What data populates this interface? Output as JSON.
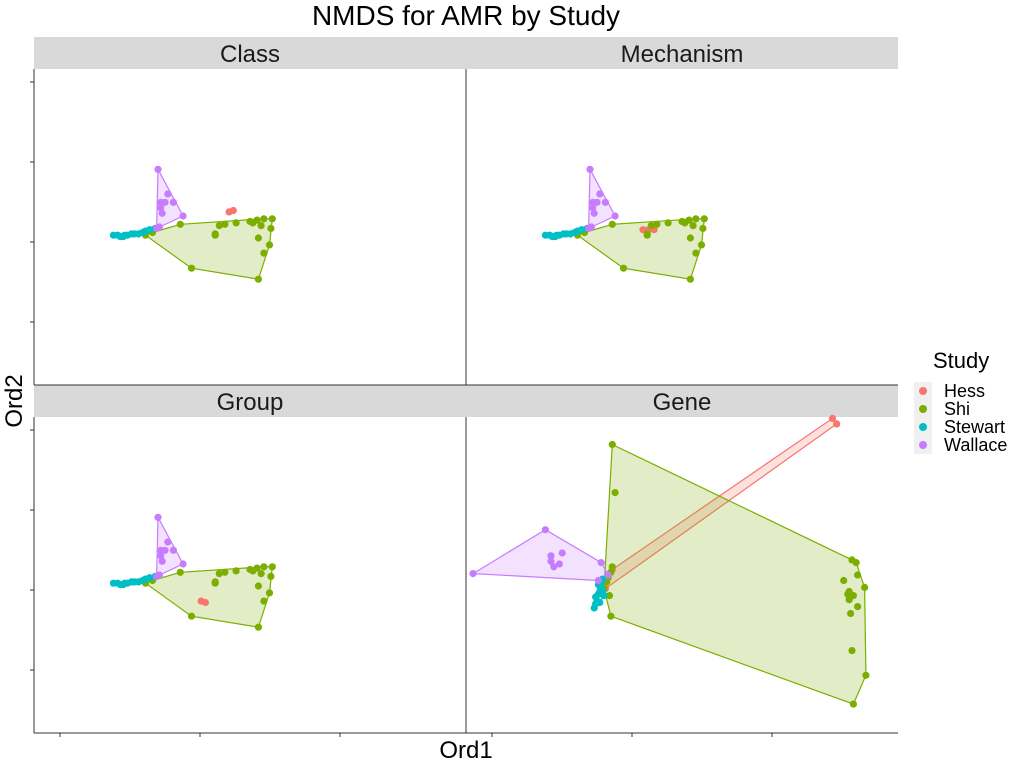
{
  "chart_data": {
    "type": "scatter",
    "title": "NMDS for AMR by Study",
    "xlabel": "Ord1",
    "ylabel": "Ord2",
    "xlim": [
      -1.65,
      1.45
    ],
    "ylim": [
      -1.15,
      1.15
    ],
    "grid": false,
    "hulls": true,
    "legend": {
      "title": "Study",
      "placement": "right",
      "entries": [
        {
          "name": "Hess",
          "color": "#F8766D"
        },
        {
          "name": "Shi",
          "color": "#7CAE00"
        },
        {
          "name": "Stewart",
          "color": "#00BFC4"
        },
        {
          "name": "Wallace",
          "color": "#C77CFF"
        }
      ]
    },
    "panels": [
      {
        "name": "Class",
        "series": [
          {
            "name": "Hess",
            "points": [
              [
                -0.22,
                0.12
              ],
              [
                -0.25,
                0.11
              ]
            ]
          },
          {
            "name": "Shi",
            "points": [
              [
                -0.85,
                -0.06
              ],
              [
                -0.8,
                -0.04
              ],
              [
                -0.6,
                0.02
              ],
              [
                -0.52,
                -0.3
              ],
              [
                -0.35,
                -0.06
              ],
              [
                -0.32,
                0.01
              ],
              [
                -0.28,
                0.02
              ],
              [
                -0.2,
                0.03
              ],
              [
                -0.1,
                0.04
              ],
              [
                -0.08,
                0.03
              ],
              [
                0.0,
                0.06
              ],
              [
                0.06,
                0.06
              ],
              [
                -0.05,
                0.05
              ],
              [
                -0.02,
                0.01
              ],
              [
                -0.04,
                -0.08
              ],
              [
                0.0,
                -0.19
              ],
              [
                0.04,
                -0.13
              ],
              [
                0.05,
                -0.01
              ],
              [
                -0.04,
                -0.38
              ],
              [
                -0.35,
                -0.05
              ]
            ]
          },
          {
            "name": "Stewart",
            "points": [
              [
                -1.08,
                -0.06
              ],
              [
                -1.05,
                -0.06
              ],
              [
                -1.03,
                -0.07
              ],
              [
                -1.01,
                -0.07
              ],
              [
                -1.0,
                -0.06
              ],
              [
                -0.98,
                -0.06
              ],
              [
                -0.95,
                -0.05
              ],
              [
                -0.93,
                -0.05
              ],
              [
                -0.9,
                -0.05
              ],
              [
                -0.87,
                -0.04
              ],
              [
                -0.85,
                -0.03
              ],
              [
                -0.82,
                -0.02
              ],
              [
                -0.78,
                -0.01
              ]
            ]
          },
          {
            "name": "Wallace",
            "points": [
              [
                -0.76,
                0.42
              ],
              [
                -0.69,
                0.24
              ],
              [
                -0.71,
                0.18
              ],
              [
                -0.74,
                0.18
              ],
              [
                -0.74,
                0.14
              ],
              [
                -0.73,
                0.1
              ],
              [
                -0.65,
                0.18
              ],
              [
                -0.58,
                0.08
              ],
              [
                -0.75,
                0.0
              ],
              [
                -0.77,
                -0.01
              ]
            ]
          }
        ]
      },
      {
        "name": "Mechanism",
        "series": [
          {
            "name": "Hess",
            "points": [
              [
                -0.3,
                -0.02
              ],
              [
                -0.34,
                -0.02
              ],
              [
                -0.38,
                -0.02
              ]
            ]
          },
          {
            "name": "Shi",
            "points": [
              [
                -0.85,
                -0.06
              ],
              [
                -0.8,
                -0.04
              ],
              [
                -0.6,
                0.02
              ],
              [
                -0.52,
                -0.3
              ],
              [
                -0.35,
                -0.06
              ],
              [
                -0.32,
                0.01
              ],
              [
                -0.28,
                0.02
              ],
              [
                -0.2,
                0.03
              ],
              [
                -0.1,
                0.04
              ],
              [
                -0.08,
                0.03
              ],
              [
                -0.0,
                0.06
              ],
              [
                0.06,
                0.06
              ],
              [
                -0.05,
                0.05
              ],
              [
                -0.02,
                0.01
              ],
              [
                -0.04,
                -0.08
              ],
              [
                0.0,
                -0.19
              ],
              [
                0.04,
                -0.13
              ],
              [
                0.05,
                -0.01
              ],
              [
                -0.04,
                -0.38
              ],
              [
                -0.35,
                -0.05
              ]
            ]
          },
          {
            "name": "Stewart",
            "points": [
              [
                -1.08,
                -0.06
              ],
              [
                -1.05,
                -0.06
              ],
              [
                -1.03,
                -0.07
              ],
              [
                -1.01,
                -0.07
              ],
              [
                -1.0,
                -0.06
              ],
              [
                -0.98,
                -0.06
              ],
              [
                -0.95,
                -0.05
              ],
              [
                -0.93,
                -0.05
              ],
              [
                -0.9,
                -0.05
              ],
              [
                -0.87,
                -0.04
              ],
              [
                -0.85,
                -0.03
              ],
              [
                -0.82,
                -0.02
              ],
              [
                -0.78,
                -0.01
              ]
            ]
          },
          {
            "name": "Wallace",
            "points": [
              [
                -0.76,
                0.42
              ],
              [
                -0.69,
                0.24
              ],
              [
                -0.71,
                0.18
              ],
              [
                -0.74,
                0.18
              ],
              [
                -0.74,
                0.14
              ],
              [
                -0.73,
                0.1
              ],
              [
                -0.65,
                0.18
              ],
              [
                -0.58,
                0.08
              ],
              [
                -0.75,
                0.0
              ],
              [
                -0.77,
                -0.01
              ]
            ]
          }
        ]
      },
      {
        "name": "Group",
        "series": [
          {
            "name": "Hess",
            "points": [
              [
                -0.42,
                -0.2
              ],
              [
                -0.45,
                -0.19
              ]
            ]
          },
          {
            "name": "Shi",
            "points": [
              [
                -0.85,
                -0.06
              ],
              [
                -0.8,
                -0.04
              ],
              [
                -0.6,
                0.02
              ],
              [
                -0.52,
                -0.3
              ],
              [
                -0.35,
                -0.06
              ],
              [
                -0.32,
                0.01
              ],
              [
                -0.28,
                0.02
              ],
              [
                -0.2,
                0.03
              ],
              [
                -0.1,
                0.04
              ],
              [
                -0.08,
                0.03
              ],
              [
                0.0,
                0.06
              ],
              [
                0.06,
                0.06
              ],
              [
                -0.05,
                0.05
              ],
              [
                -0.02,
                0.01
              ],
              [
                -0.04,
                -0.08
              ],
              [
                0.0,
                -0.19
              ],
              [
                0.04,
                -0.13
              ],
              [
                0.05,
                -0.01
              ],
              [
                -0.04,
                -0.38
              ],
              [
                -0.35,
                -0.05
              ]
            ]
          },
          {
            "name": "Stewart",
            "points": [
              [
                -1.08,
                -0.06
              ],
              [
                -1.05,
                -0.06
              ],
              [
                -1.03,
                -0.07
              ],
              [
                -1.01,
                -0.07
              ],
              [
                -1.0,
                -0.06
              ],
              [
                -0.98,
                -0.06
              ],
              [
                -0.95,
                -0.05
              ],
              [
                -0.93,
                -0.05
              ],
              [
                -0.9,
                -0.05
              ],
              [
                -0.87,
                -0.04
              ],
              [
                -0.85,
                -0.03
              ],
              [
                -0.82,
                -0.02
              ],
              [
                -0.78,
                -0.01
              ]
            ]
          },
          {
            "name": "Wallace",
            "points": [
              [
                -0.76,
                0.42
              ],
              [
                -0.69,
                0.24
              ],
              [
                -0.71,
                0.18
              ],
              [
                -0.74,
                0.18
              ],
              [
                -0.74,
                0.14
              ],
              [
                -0.73,
                0.1
              ],
              [
                -0.65,
                0.18
              ],
              [
                -0.58,
                0.08
              ],
              [
                -0.75,
                0.0
              ],
              [
                -0.77,
                -0.01
              ]
            ]
          }
        ]
      },
      {
        "name": "Gene",
        "series": [
          {
            "name": "Hess",
            "points": [
              [
                0.98,
                1.14
              ],
              [
                1.01,
                1.1
              ],
              [
                -0.65,
                -0.1
              ],
              [
                -0.6,
                0.04
              ]
            ]
          },
          {
            "name": "Shi",
            "points": [
              [
                -0.6,
                0.95
              ],
              [
                -0.58,
                0.6
              ],
              [
                -0.61,
                0.02
              ],
              [
                -0.6,
                0.06
              ],
              [
                -0.66,
                -0.1
              ],
              [
                -0.64,
                -0.05
              ],
              [
                -0.62,
                -0.15
              ],
              [
                -0.63,
                -0.02
              ],
              [
                -0.61,
                -0.3
              ],
              [
                1.06,
                -0.04
              ],
              [
                1.1,
                -0.12
              ],
              [
                1.11,
                -0.28
              ],
              [
                1.12,
                -0.55
              ],
              [
                1.09,
                -0.14
              ],
              [
                1.1,
                -0.18
              ],
              [
                1.12,
                0.11
              ],
              [
                1.15,
                0.09
              ],
              [
                1.16,
                0.0
              ],
              [
                1.21,
                -0.09
              ],
              [
                1.16,
                -0.23
              ],
              [
                1.22,
                -0.73
              ],
              [
                1.13,
                -0.94
              ],
              [
                1.13,
                -0.15
              ]
            ]
          },
          {
            "name": "Stewart",
            "points": [
              [
                -0.68,
                -0.1
              ],
              [
                -0.7,
                -0.14
              ],
              [
                -0.71,
                -0.19
              ],
              [
                -0.72,
                -0.21
              ],
              [
                -0.73,
                -0.24
              ],
              [
                -0.72,
                -0.16
              ],
              [
                -0.7,
                -0.07
              ],
              [
                -0.68,
                -0.06
              ],
              [
                -0.67,
                -0.03
              ],
              [
                -0.67,
                -0.12
              ],
              [
                -0.66,
                -0.15
              ],
              [
                -0.69,
                -0.2
              ]
            ]
          },
          {
            "name": "Wallace",
            "points": [
              [
                -1.08,
                0.33
              ],
              [
                -0.96,
                0.16
              ],
              [
                -1.6,
                0.01
              ],
              [
                -1.04,
                0.14
              ],
              [
                -1.04,
                0.1
              ],
              [
                -1.02,
                0.06
              ],
              [
                -0.98,
                0.08
              ],
              [
                -0.68,
                0.09
              ],
              [
                -0.63,
                0.0
              ],
              [
                -0.7,
                -0.04
              ]
            ]
          }
        ]
      }
    ]
  }
}
